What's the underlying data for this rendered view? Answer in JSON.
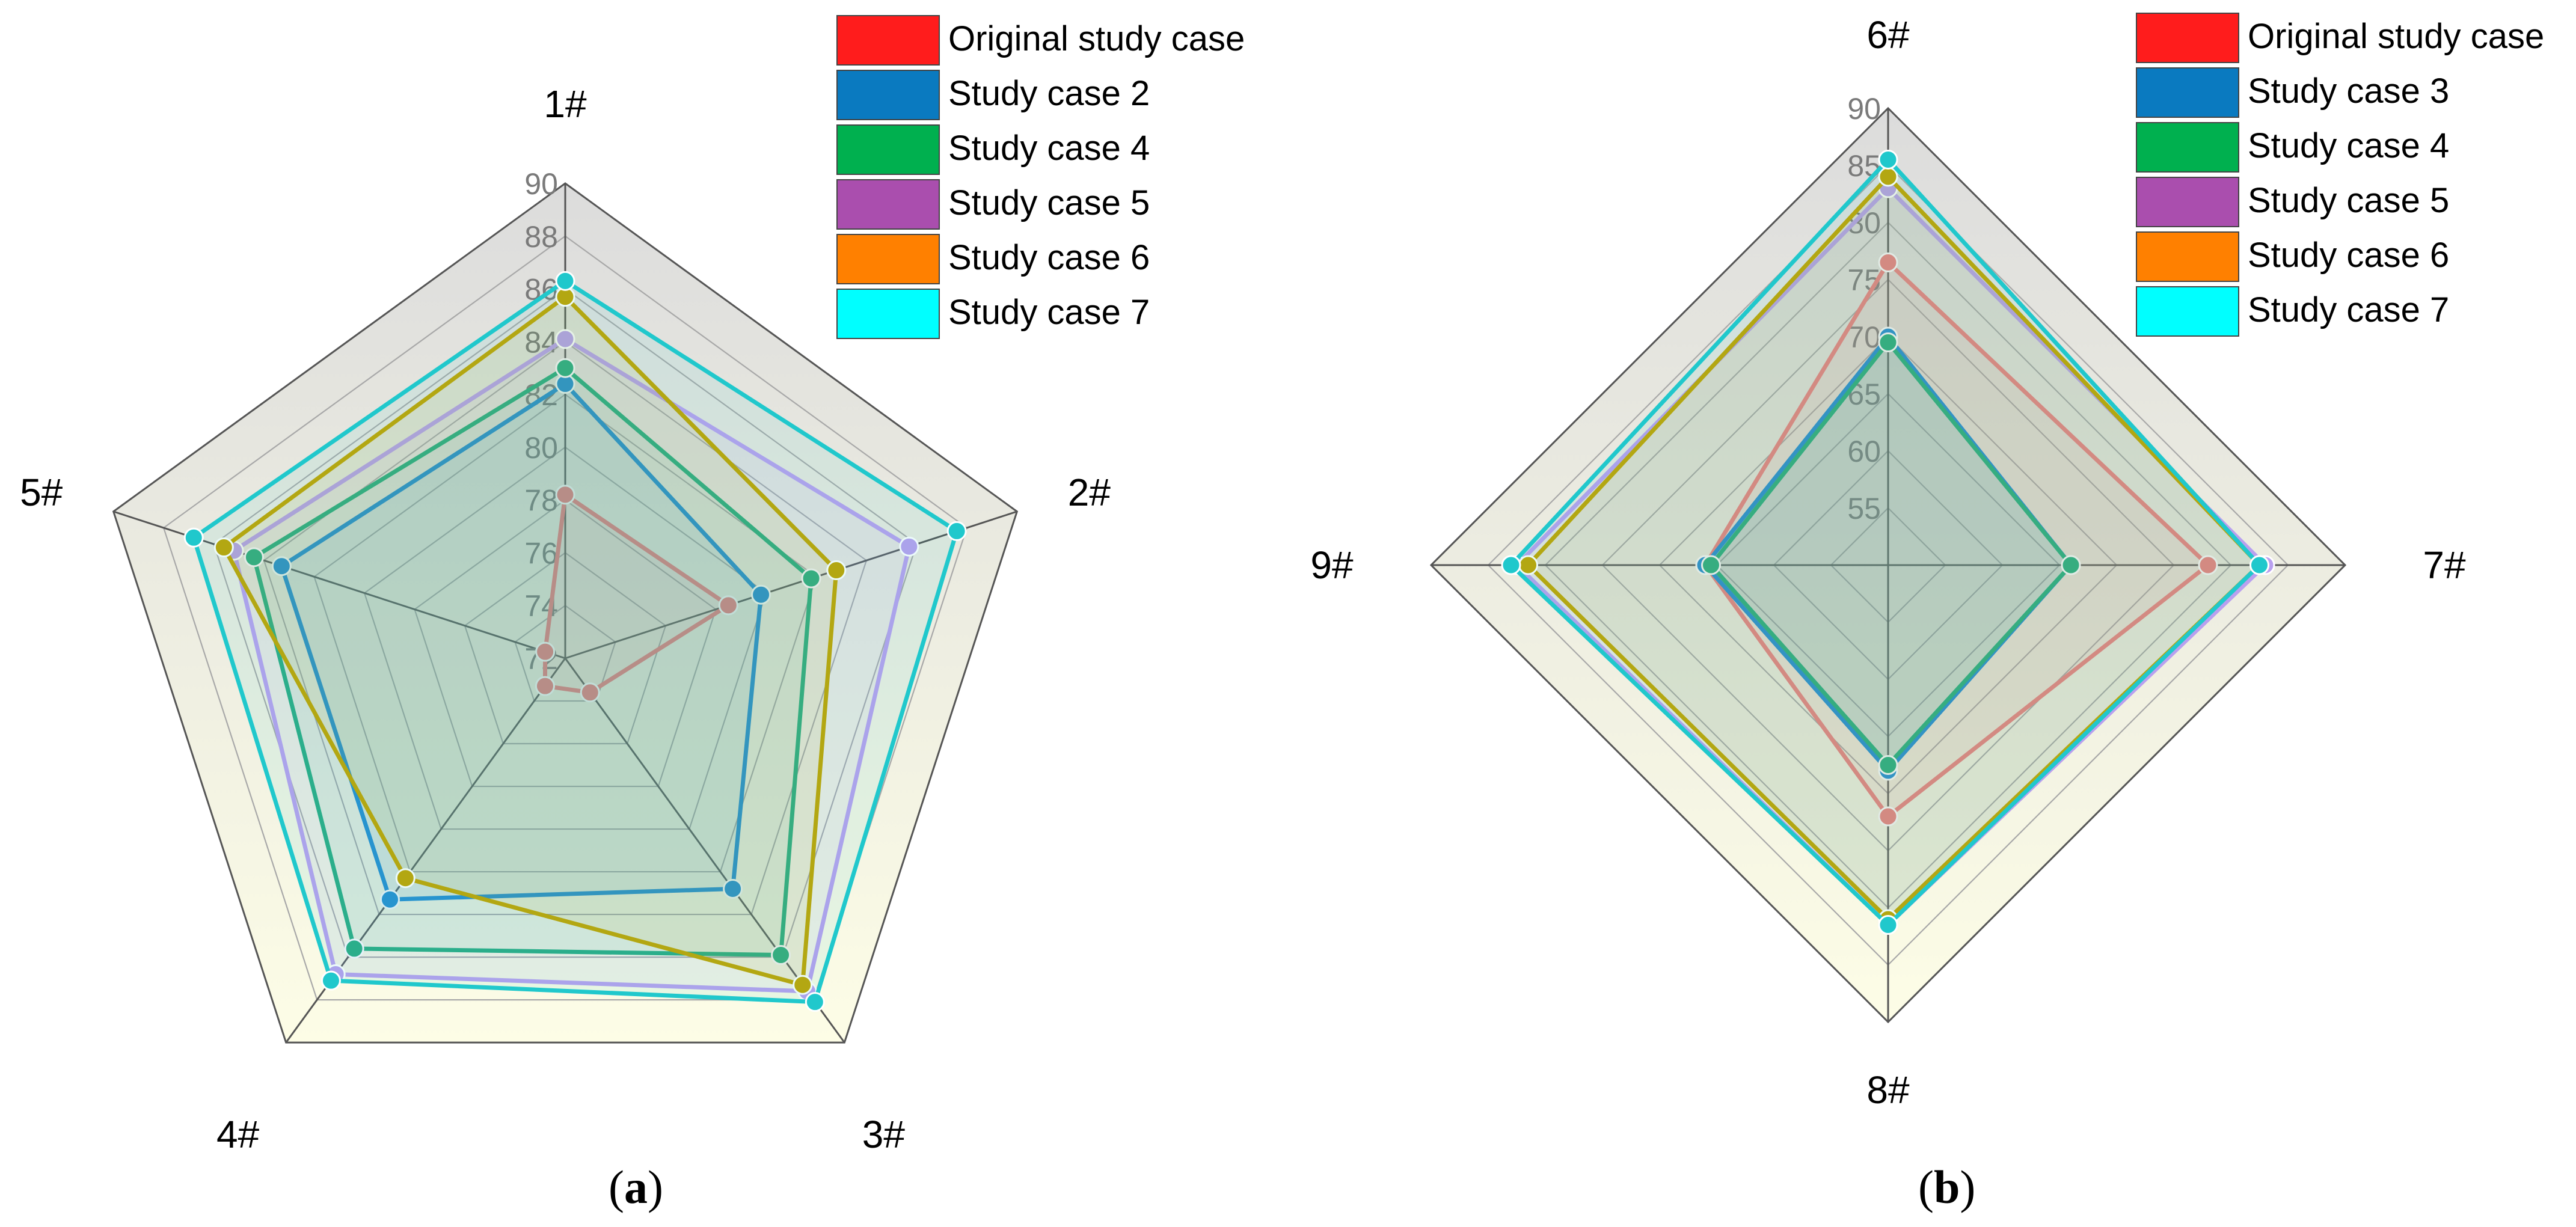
{
  "chart_data": [
    {
      "type": "radar",
      "panel_label": "a",
      "axes": [
        "1#",
        "2#",
        "3#",
        "4#",
        "5#"
      ],
      "r_range": [
        72,
        90
      ],
      "r_ticks": [
        72,
        74,
        76,
        78,
        80,
        82,
        84,
        86,
        88,
        90
      ],
      "legend_position": "top-right",
      "series": [
        {
          "name": "Original study case",
          "color": "#ff1c1c",
          "line_color": "#ee7f7f",
          "values": [
            78.2,
            78.5,
            73.6,
            73.3,
            72.8
          ]
        },
        {
          "name": "Study case 2",
          "color": "#0a7ac0",
          "line_color": "#1a8bd6",
          "values": [
            82.4,
            79.8,
            82.8,
            83.3,
            83.3
          ]
        },
        {
          "name": "Study case 4",
          "color": "#00b04f",
          "line_color": "#1fae7a",
          "values": [
            83.0,
            81.8,
            85.9,
            85.6,
            84.4
          ]
        },
        {
          "name": "Study case 5",
          "color": "#aa4eae",
          "line_color": "#b9a0ef",
          "values": [
            84.1,
            85.7,
            87.6,
            86.8,
            85.2
          ]
        },
        {
          "name": "Study case 6",
          "color": "#ff8000",
          "line_color": "#c2a400",
          "values": [
            85.7,
            82.8,
            87.3,
            82.3,
            85.6
          ]
        },
        {
          "name": "Study case 7",
          "color": "#00ffff",
          "line_color": "#20c8cc",
          "values": [
            86.3,
            87.6,
            88.1,
            87.1,
            86.8
          ]
        }
      ]
    },
    {
      "type": "radar",
      "panel_label": "b",
      "axes": [
        "6#",
        "7#",
        "8#",
        "9#"
      ],
      "r_range": [
        50,
        90
      ],
      "r_ticks": [
        55,
        60,
        65,
        70,
        75,
        80,
        85,
        90
      ],
      "legend_position": "top-right",
      "series": [
        {
          "name": "Original study case",
          "color": "#ff1c1c",
          "line_color": "#ee7f7f",
          "values": [
            76.5,
            78.0,
            72.0,
            66.0
          ]
        },
        {
          "name": "Study case 3",
          "color": "#0a7ac0",
          "line_color": "#1a8bd6",
          "values": [
            70.0,
            66.0,
            68.0,
            66.0
          ]
        },
        {
          "name": "Study case 4",
          "color": "#00b04f",
          "line_color": "#1fae7a",
          "values": [
            69.5,
            66.0,
            67.5,
            65.5
          ]
        },
        {
          "name": "Study case 5",
          "color": "#aa4eae",
          "line_color": "#b9a0ef",
          "values": [
            83.0,
            83.0,
            81.5,
            82.5
          ]
        },
        {
          "name": "Study case 6",
          "color": "#ff8000",
          "line_color": "#c2a400",
          "values": [
            84.0,
            82.5,
            81.0,
            81.5
          ]
        },
        {
          "name": "Study case 7",
          "color": "#00ffff",
          "line_color": "#20c8cc",
          "values": [
            85.5,
            82.5,
            81.5,
            83.0
          ]
        }
      ]
    }
  ],
  "captions": {
    "a": {
      "open": "(",
      "letter": "a",
      "close": ")"
    },
    "b": {
      "open": "(",
      "letter": "b",
      "close": ")"
    }
  }
}
